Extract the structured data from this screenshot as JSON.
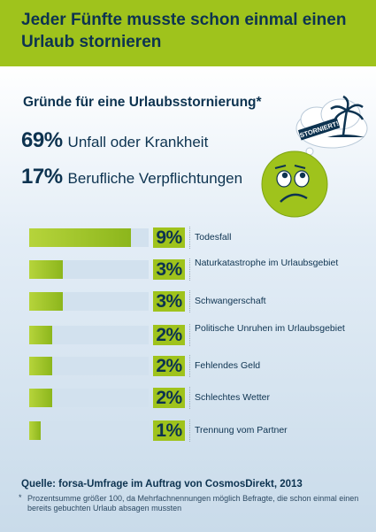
{
  "header": {
    "title": "Jeder Fünfte musste schon einmal einen Urlaub stornieren"
  },
  "subtitle": "Gründe für eine Urlaubsstornierung*",
  "stats": [
    {
      "pct": "69%",
      "label": "Unfall oder Krankheit"
    },
    {
      "pct": "17%",
      "label": "Berufliche Verpflichtungen"
    }
  ],
  "illustration": {
    "stamp_text": "STORNIERT!"
  },
  "chart_data": {
    "type": "bar",
    "orientation": "horizontal",
    "categories": [
      "Todesfall",
      "Naturkatastrophe im Urlaubsgebiet",
      "Schwangerschaft",
      "Politische Unruhen im Urlaubsgebiet",
      "Fehlendes Geld",
      "Schlechtes Wetter",
      "Trennung vom Partner"
    ],
    "values": [
      9,
      3,
      3,
      2,
      2,
      2,
      1
    ],
    "value_labels": [
      "9%",
      "3%",
      "3%",
      "2%",
      "2%",
      "2%",
      "1%"
    ],
    "unit": "%",
    "xlim": [
      0,
      10
    ]
  },
  "source": "Quelle: forsa-Umfrage im Auftrag von CosmosDirekt, 2013",
  "footnote_mark": "*",
  "footnote": "Prozentsumme größer 100, da Mehrfachnennungen möglich Befragte, die schon einmal einen bereits gebuchten Urlaub absagen mussten",
  "colors": {
    "header": "#9fc31c",
    "text": "#0d3350",
    "bar": "#9fc31c",
    "track": "#d2e1ee"
  }
}
